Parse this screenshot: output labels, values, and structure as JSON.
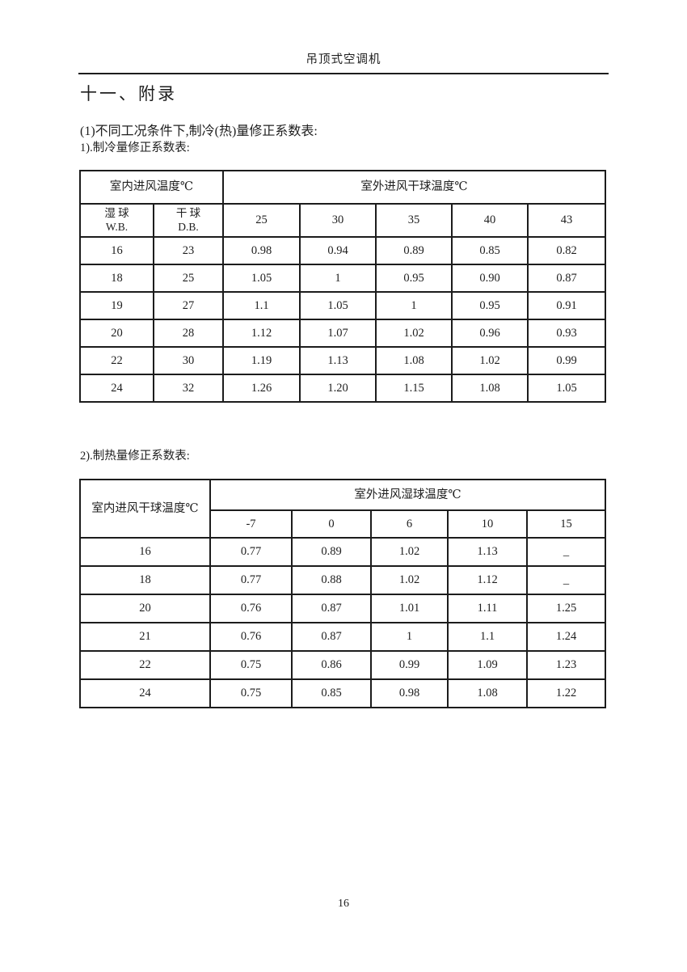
{
  "page": {
    "running_header": "吊顶式空调机",
    "page_number": "16"
  },
  "section": {
    "title": "十一、附录",
    "intro": "(1)不同工况条件下,制冷(热)量修正系数表:",
    "table1_caption": "1).制冷量修正系数表:",
    "table2_caption": "2).制热量修正系数表:"
  },
  "table1": {
    "group_left": "室内进风温度℃",
    "group_right": "室外进风干球温度℃",
    "sub_wb_line1": "湿 球",
    "sub_wb_line2": "W.B.",
    "sub_db_line1": "干 球",
    "sub_db_line2": "D.B.",
    "temp_cols": [
      "25",
      "30",
      "35",
      "40",
      "43"
    ],
    "rows": [
      [
        "16",
        "23",
        "0.98",
        "0.94",
        "0.89",
        "0.85",
        "0.82"
      ],
      [
        "18",
        "25",
        "1.05",
        "1",
        "0.95",
        "0.90",
        "0.87"
      ],
      [
        "19",
        "27",
        "1.1",
        "1.05",
        "1",
        "0.95",
        "0.91"
      ],
      [
        "20",
        "28",
        "1.12",
        "1.07",
        "1.02",
        "0.96",
        "0.93"
      ],
      [
        "22",
        "30",
        "1.19",
        "1.13",
        "1.08",
        "1.02",
        "0.99"
      ],
      [
        "24",
        "32",
        "1.26",
        "1.20",
        "1.15",
        "1.08",
        "1.05"
      ]
    ]
  },
  "table2": {
    "group_left": "室内进风干球温度℃",
    "group_right": "室外进风湿球温度℃",
    "temp_cols": [
      "-7",
      "0",
      "6",
      "10",
      "15"
    ],
    "rows": [
      [
        "16",
        "0.77",
        "0.89",
        "1.02",
        "1.13",
        "_"
      ],
      [
        "18",
        "0.77",
        "0.88",
        "1.02",
        "1.12",
        "_"
      ],
      [
        "20",
        "0.76",
        "0.87",
        "1.01",
        "1.11",
        "1.25"
      ],
      [
        "21",
        "0.76",
        "0.87",
        "1",
        "1.1",
        "1.24"
      ],
      [
        "22",
        "0.75",
        "0.86",
        "0.99",
        "1.09",
        "1.23"
      ],
      [
        "24",
        "0.75",
        "0.85",
        "0.98",
        "1.08",
        "1.22"
      ]
    ]
  }
}
